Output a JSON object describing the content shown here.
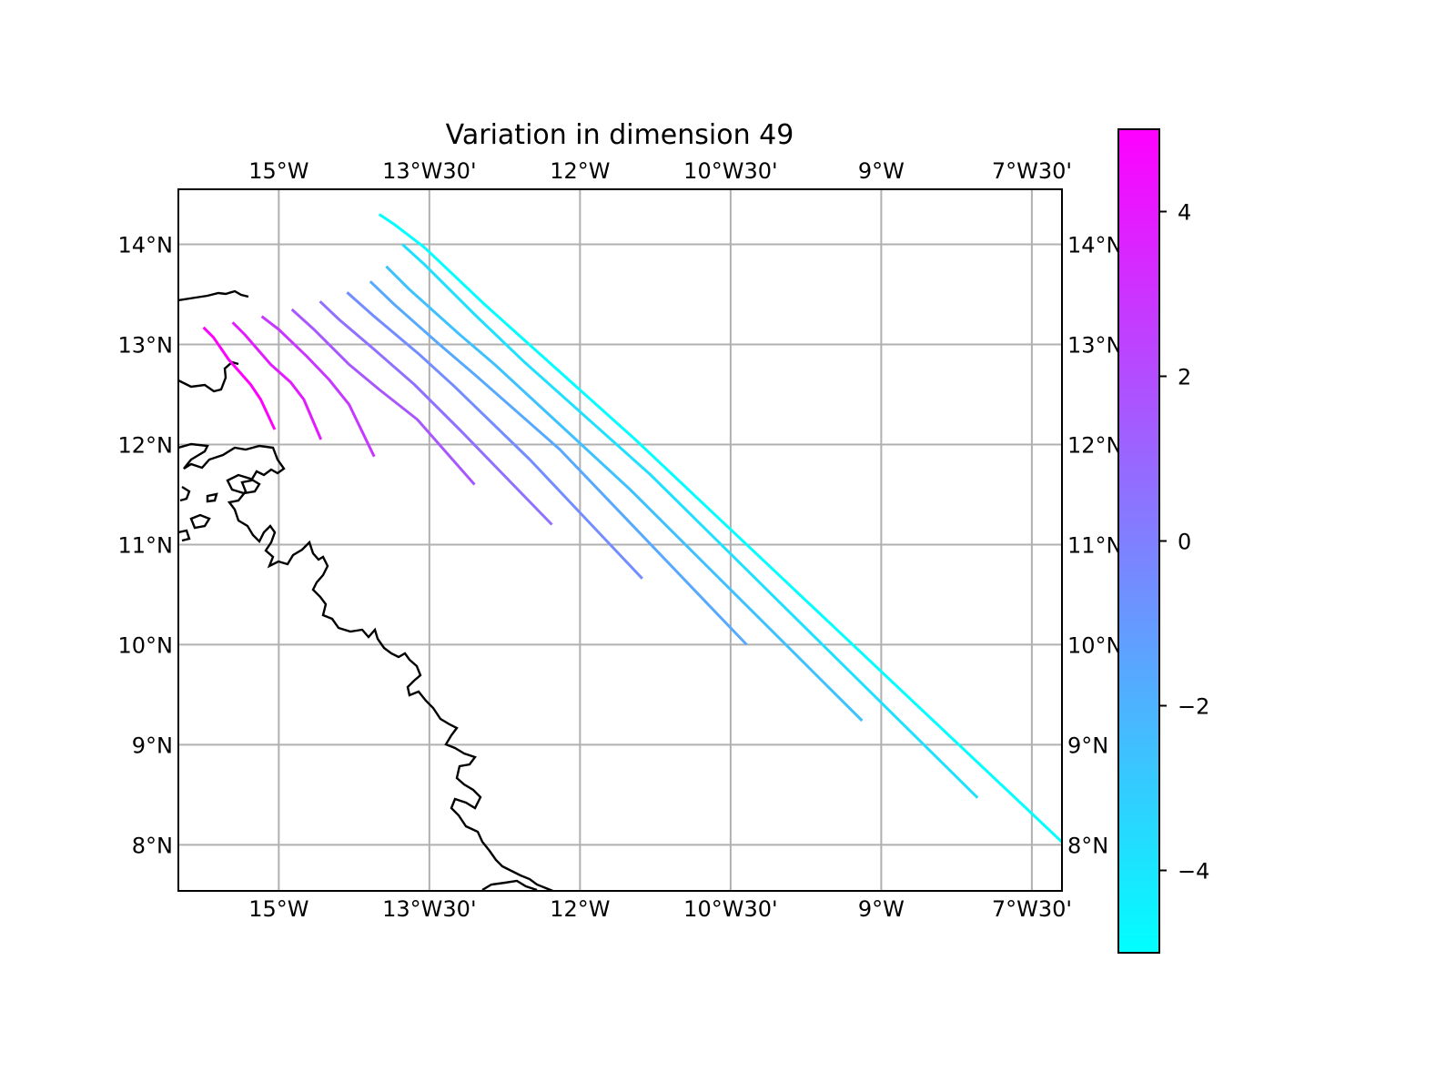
{
  "chart_data": {
    "type": "line",
    "title": "Variation in dimension 49",
    "xlabel": "",
    "ylabel": "",
    "xlim": [
      -16.0,
      -7.2
    ],
    "ylim": [
      7.54,
      14.55
    ],
    "x_ticks": [
      -15.0,
      -13.5,
      -12.0,
      -10.5,
      -9.0,
      -7.5
    ],
    "x_tick_labels": [
      "15°W",
      "13°W30'",
      "12°W",
      "10°W30'",
      "9°W",
      "7°W30'"
    ],
    "y_ticks": [
      8,
      9,
      10,
      11,
      12,
      13,
      14
    ],
    "y_tick_labels": [
      "8°N",
      "9°N",
      "10°N",
      "11°N",
      "12°N",
      "13°N",
      "14°N"
    ],
    "grid": true,
    "colorbar": {
      "colormap": "cool",
      "range": [
        -5,
        5
      ],
      "ticks": [
        4,
        2,
        0,
        -2,
        -4
      ],
      "tick_labels": [
        "4",
        "2",
        "0",
        "−2",
        "−4"
      ],
      "color_low": "#00ffff",
      "color_high": "#ff00ff"
    },
    "series": [
      {
        "value": 5.0,
        "points": [
          [
            -15.75,
            13.17
          ],
          [
            -15.65,
            13.07
          ],
          [
            -15.5,
            12.85
          ],
          [
            -15.28,
            12.6
          ],
          [
            -15.18,
            12.45
          ],
          [
            -15.04,
            12.15
          ]
        ]
      },
      {
        "value": 3.9,
        "points": [
          [
            -15.46,
            13.22
          ],
          [
            -15.34,
            13.1
          ],
          [
            -15.08,
            12.8
          ],
          [
            -14.88,
            12.62
          ],
          [
            -14.75,
            12.45
          ],
          [
            -14.58,
            12.05
          ]
        ]
      },
      {
        "value": 2.8,
        "points": [
          [
            -15.17,
            13.28
          ],
          [
            -15.0,
            13.15
          ],
          [
            -14.72,
            12.88
          ],
          [
            -14.5,
            12.65
          ],
          [
            -14.3,
            12.4
          ],
          [
            -14.05,
            11.88
          ]
        ]
      },
      {
        "value": 1.6,
        "points": [
          [
            -14.87,
            13.35
          ],
          [
            -14.65,
            13.15
          ],
          [
            -14.3,
            12.8
          ],
          [
            -14.0,
            12.55
          ],
          [
            -13.62,
            12.25
          ],
          [
            -13.05,
            11.6
          ]
        ]
      },
      {
        "value": 0.6,
        "points": [
          [
            -14.59,
            13.43
          ],
          [
            -14.4,
            13.25
          ],
          [
            -14.05,
            12.95
          ],
          [
            -13.65,
            12.6
          ],
          [
            -13.2,
            12.15
          ],
          [
            -12.28,
            11.2
          ]
        ]
      },
      {
        "value": -0.5,
        "points": [
          [
            -14.32,
            13.52
          ],
          [
            -14.05,
            13.28
          ],
          [
            -13.6,
            12.9
          ],
          [
            -13.25,
            12.58
          ],
          [
            -12.5,
            11.85
          ],
          [
            -11.38,
            10.66
          ]
        ]
      },
      {
        "value": -1.6,
        "points": [
          [
            -14.09,
            13.63
          ],
          [
            -13.85,
            13.4
          ],
          [
            -13.4,
            13.0
          ],
          [
            -13.05,
            12.7
          ],
          [
            -12.2,
            11.95
          ],
          [
            -10.34,
            10.0
          ]
        ]
      },
      {
        "value": -2.6,
        "points": [
          [
            -13.93,
            13.78
          ],
          [
            -13.7,
            13.55
          ],
          [
            -13.2,
            13.1
          ],
          [
            -12.85,
            12.8
          ],
          [
            -11.5,
            11.55
          ],
          [
            -9.19,
            9.24
          ]
        ]
      },
      {
        "value": -3.8,
        "points": [
          [
            -13.77,
            14.0
          ],
          [
            -13.55,
            13.8
          ],
          [
            -13.05,
            13.3
          ],
          [
            -12.55,
            12.82
          ],
          [
            -11.3,
            11.7
          ],
          [
            -8.04,
            8.47
          ]
        ]
      },
      {
        "value": -5.0,
        "points": [
          [
            -14.0,
            14.3
          ],
          [
            -13.85,
            14.2
          ],
          [
            -13.55,
            13.97
          ],
          [
            -12.95,
            13.4
          ],
          [
            -11.45,
            12.05
          ],
          [
            -6.98,
            7.82
          ]
        ]
      }
    ]
  }
}
